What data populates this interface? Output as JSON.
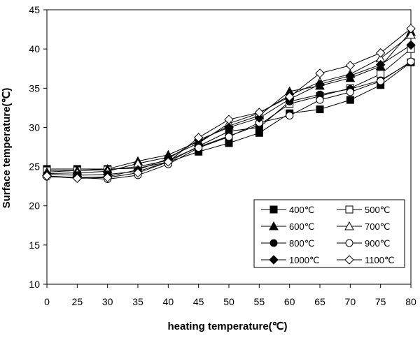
{
  "chart_data": {
    "type": "line",
    "title": "",
    "xlabel": "heating temperature(℃)",
    "ylabel": "Surface temperature(℃)",
    "categories": [
      "0",
      "25",
      "30",
      "35",
      "40",
      "45",
      "50",
      "55",
      "60",
      "65",
      "70",
      "75",
      "80"
    ],
    "ylim": [
      10,
      45
    ],
    "yticks": [
      "10",
      "15",
      "20",
      "25",
      "30",
      "35",
      "40",
      "45"
    ],
    "grid": false,
    "legend_position": "bottom-right",
    "legend_columns": 2,
    "series": [
      {
        "name": "400℃",
        "marker": "square-filled",
        "values": [
          24.7,
          24.7,
          24.7,
          24.8,
          25.6,
          26.9,
          28.0,
          29.3,
          31.8,
          32.3,
          33.5,
          35.4,
          38.3
        ]
      },
      {
        "name": "500℃",
        "marker": "square-open",
        "values": [
          24.5,
          24.5,
          24.6,
          25.0,
          25.8,
          27.5,
          28.9,
          30.3,
          33.0,
          34.0,
          35.0,
          36.8,
          40.0
        ]
      },
      {
        "name": "600℃",
        "marker": "triangle-filled",
        "values": [
          24.3,
          24.5,
          24.7,
          25.7,
          26.5,
          28.2,
          30.2,
          31.5,
          34.6,
          35.3,
          36.3,
          37.8,
          42.2
        ]
      },
      {
        "name": "700℃",
        "marker": "triangle-open",
        "values": [
          24.1,
          24.2,
          24.4,
          25.4,
          26.2,
          28.0,
          30.5,
          31.8,
          34.1,
          35.8,
          36.8,
          38.8,
          41.8
        ]
      },
      {
        "name": "800℃",
        "marker": "circle-filled",
        "values": [
          24.0,
          23.9,
          24.0,
          24.4,
          25.6,
          27.6,
          29.5,
          30.0,
          33.3,
          34.2,
          34.9,
          36.0,
          38.3
        ]
      },
      {
        "name": "900℃",
        "marker": "circle-open",
        "values": [
          23.7,
          23.6,
          23.4,
          23.9,
          25.3,
          27.4,
          28.8,
          30.6,
          31.5,
          33.5,
          34.5,
          35.9,
          38.4
        ]
      },
      {
        "name": "1000℃",
        "marker": "diamond-filled",
        "values": [
          23.8,
          23.6,
          23.7,
          24.6,
          26.0,
          28.4,
          30.0,
          31.2,
          33.6,
          35.5,
          36.6,
          38.0,
          40.5
        ]
      },
      {
        "name": "1100℃",
        "marker": "diamond-open",
        "values": [
          23.8,
          23.5,
          23.6,
          24.2,
          25.6,
          28.7,
          31.0,
          31.9,
          33.9,
          36.9,
          37.9,
          39.5,
          42.6
        ]
      }
    ]
  }
}
